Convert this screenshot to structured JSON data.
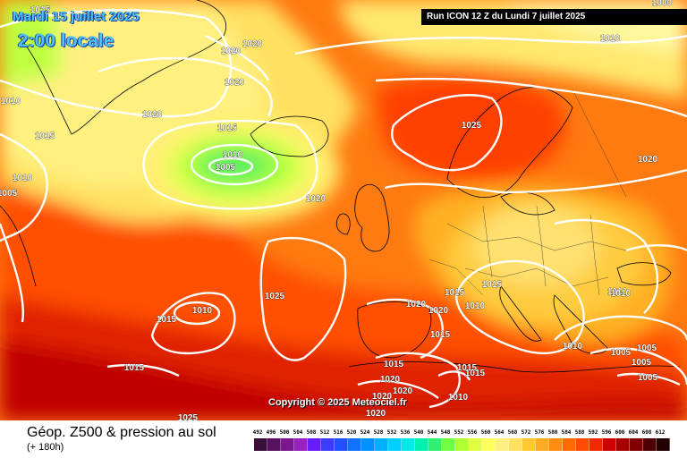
{
  "header": {
    "date": "Mardi 15 juillet 2025",
    "local_time": "2:00 locale",
    "run_info": "Run ICON 12 Z du Lundi 7 juillet 2025"
  },
  "copyright": "Copyright © 2025 Meteociel.fr",
  "footer": {
    "title": "Géop. Z500 & pression au sol",
    "lead_time": "(+ 180h)"
  },
  "legend": {
    "values": [
      "492",
      "496",
      "500",
      "504",
      "508",
      "512",
      "516",
      "520",
      "524",
      "528",
      "532",
      "536",
      "540",
      "544",
      "548",
      "552",
      "556",
      "560",
      "564",
      "568",
      "572",
      "576",
      "580",
      "584",
      "588",
      "592",
      "596",
      "600",
      "604",
      "608",
      "612"
    ],
    "colors": [
      "#3b0d3b",
      "#5a1060",
      "#7a1690",
      "#9a20c0",
      "#6a1aff",
      "#3d3dff",
      "#2050ff",
      "#1070ff",
      "#0090ff",
      "#00b0ff",
      "#00d0ff",
      "#00e8e8",
      "#00f0b0",
      "#30f070",
      "#70ff40",
      "#b0ff30",
      "#e0ff40",
      "#ffff60",
      "#ffef80",
      "#ffe060",
      "#ffc830",
      "#ffaa20",
      "#ff8c10",
      "#ff6a00",
      "#ff4a00",
      "#f02a00",
      "#d00000",
      "#a80000",
      "#800000",
      "#500000",
      "#200000"
    ]
  },
  "isobars": [
    {
      "label": "1015"
    },
    {
      "label": "1020"
    },
    {
      "label": "1020"
    },
    {
      "label": "1020"
    },
    {
      "label": "1020"
    },
    {
      "label": "1015"
    },
    {
      "label": "1010"
    },
    {
      "label": "1005"
    },
    {
      "label": "1010"
    },
    {
      "label": "1015"
    },
    {
      "label": "1005"
    },
    {
      "label": "1010"
    },
    {
      "label": "1020"
    },
    {
      "label": "1025"
    },
    {
      "label": "1015"
    },
    {
      "label": "1010"
    },
    {
      "label": "1015"
    },
    {
      "label": "1025"
    },
    {
      "label": "1010"
    },
    {
      "label": "1020"
    },
    {
      "label": "1000"
    },
    {
      "label": "1015"
    },
    {
      "label": "1015"
    },
    {
      "label": "1010"
    },
    {
      "label": "1020"
    },
    {
      "label": "1015"
    },
    {
      "label": "1010"
    },
    {
      "label": "1010"
    },
    {
      "label": "1005"
    },
    {
      "label": "1010"
    },
    {
      "label": "1005"
    },
    {
      "label": "1005"
    },
    {
      "label": "1005"
    },
    {
      "label": "1020"
    },
    {
      "label": "1020"
    },
    {
      "label": "1020"
    },
    {
      "label": "1015"
    },
    {
      "label": "1015"
    },
    {
      "label": "1010"
    },
    {
      "label": "1020"
    },
    {
      "label": "1020"
    },
    {
      "label": "1015"
    },
    {
      "label": "1025"
    }
  ]
}
